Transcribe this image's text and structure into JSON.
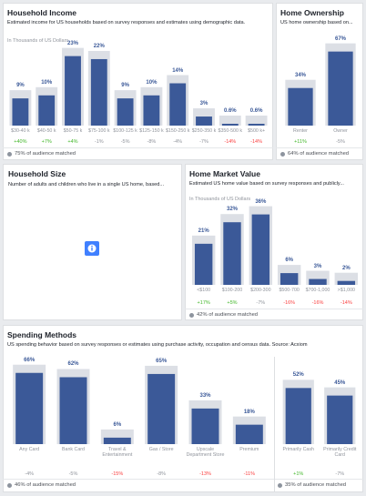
{
  "chart_data": [
    {
      "type": "bar",
      "title": "Household Income",
      "subtitle": "Estimated income for US households based on survey responses and estimates using demographic data.",
      "axis_label": "In Thousands of US Dollars",
      "categories": [
        "$30-40 k",
        "$40-50 k",
        "$50-75 k",
        "$75-100 k",
        "$100-125 k",
        "$125-150 k",
        "$150-250 k",
        "$250-350 k",
        "$350-500 k",
        "$500 k+"
      ],
      "values": [
        9,
        10,
        23,
        22,
        9,
        10,
        14,
        3,
        0.6,
        0.6
      ],
      "value_labels": [
        "9%",
        "10%",
        "23%",
        "22%",
        "9%",
        "10%",
        "14%",
        "3%",
        "0.6%",
        "0.6%"
      ],
      "changes": [
        "+40%",
        "+7%",
        "+4%",
        "-1%",
        "-5%",
        "-8%",
        "-4%",
        "-7%",
        "-14%",
        "-14%"
      ],
      "footer": "75% of audience matched",
      "ylim": [
        0,
        25
      ],
      "color": "#3b5998",
      "backdrop_color": "#dcdfe5"
    },
    {
      "type": "bar",
      "title": "Home Ownership",
      "subtitle": "US home ownership based on...",
      "categories": [
        "Renter",
        "Owner"
      ],
      "values": [
        34,
        67
      ],
      "value_labels": [
        "34%",
        "67%"
      ],
      "changes": [
        "+11%",
        "-5%"
      ],
      "footer": "64% of audience matched",
      "ylim": [
        0,
        70
      ],
      "color": "#3b5998",
      "backdrop_color": "#dcdfe5"
    },
    {
      "type": "bar",
      "title": "Home Market Value",
      "subtitle": "Estimated US home value based on survey responses and publicly...",
      "axis_label": "In Thousands of US Dollars",
      "categories": [
        "<$100",
        "$100-200",
        "$200-300",
        "$500-700",
        "$700-1,000",
        ">$1,000"
      ],
      "values": [
        21,
        32,
        36,
        6,
        3,
        2
      ],
      "value_labels": [
        "21%",
        "32%",
        "36%",
        "6%",
        "3%",
        "2%"
      ],
      "changes": [
        "+17%",
        "+5%",
        "-7%",
        "-16%",
        "-16%",
        "-14%"
      ],
      "footer": "42% of audience matched",
      "ylim": [
        0,
        40
      ],
      "color": "#3b5998",
      "backdrop_color": "#dcdfe5"
    },
    {
      "type": "bar",
      "title": "Spending Methods",
      "subtitle": "US spending behavior based on survey responses or estimates using purchase activity, occupation and census data. Source: Acxiom",
      "categories": [
        "Any Card",
        "Bank Card",
        "Travel & Entertainment",
        "Gas / Store",
        "Upscale Department Store",
        "Premium"
      ],
      "values": [
        66,
        62,
        6,
        65,
        33,
        18
      ],
      "value_labels": [
        "66%",
        "62%",
        "6%",
        "65%",
        "33%",
        "18%"
      ],
      "changes": [
        "-4%",
        "-5%",
        "-15%",
        "-8%",
        "-13%",
        "-11%"
      ],
      "footer": "46% of audience matched",
      "ylim": [
        0,
        70
      ],
      "color": "#3b5998",
      "backdrop_color": "#dcdfe5"
    },
    {
      "type": "bar",
      "categories": [
        "Primarily Cash",
        "Primarily Credit Card"
      ],
      "values": [
        52,
        45
      ],
      "value_labels": [
        "52%",
        "45%"
      ],
      "changes": [
        "+1%",
        "-7%"
      ],
      "footer": "35% of audience matched",
      "ylim": [
        0,
        70
      ],
      "color": "#3b5998",
      "backdrop_color": "#dcdfe5"
    }
  ],
  "household_size": {
    "title": "Household Size",
    "subtitle": "Number of adults and children who live in a single US home, based..."
  }
}
